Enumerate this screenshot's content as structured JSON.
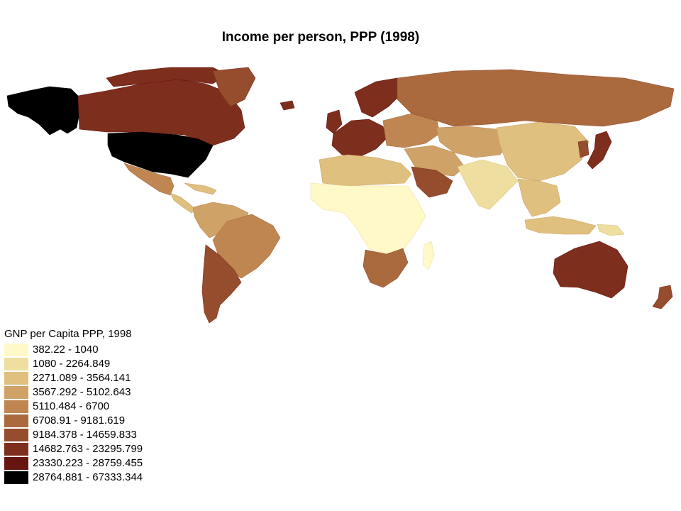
{
  "title": "Income per person, PPP (1998)",
  "legend": {
    "title": "GNP per Capita PPP, 1998",
    "classes": [
      {
        "label": "382.22 - 1040",
        "color": "#fff8c8"
      },
      {
        "label": "1080 - 2264.849",
        "color": "#eedfa0"
      },
      {
        "label": "2271.089 - 3564.141",
        "color": "#dfc07e"
      },
      {
        "label": "3567.292 - 5102.643",
        "color": "#cfa268"
      },
      {
        "label": "5110.484 - 6700",
        "color": "#bf8652"
      },
      {
        "label": "6708.91 - 9181.619",
        "color": "#ab6a3e"
      },
      {
        "label": "9184.378 - 14659.833",
        "color": "#954d2d"
      },
      {
        "label": "14682.763 - 23295.799",
        "color": "#7e2e1c"
      },
      {
        "label": "23330.223 - 28759.455",
        "color": "#661510"
      },
      {
        "label": "28764.881 - 67333.344",
        "color": "#000000"
      }
    ]
  },
  "regions": [
    {
      "name": "alaska",
      "class": 9
    },
    {
      "name": "canada",
      "class": 7
    },
    {
      "name": "canada-arctic",
      "class": 7
    },
    {
      "name": "greenland",
      "class": 6
    },
    {
      "name": "usa",
      "class": 9
    },
    {
      "name": "mexico",
      "class": 4
    },
    {
      "name": "central-america",
      "class": 2
    },
    {
      "name": "caribbean",
      "class": 2
    },
    {
      "name": "south-america-north",
      "class": 3
    },
    {
      "name": "brazil",
      "class": 4
    },
    {
      "name": "argentina-chile",
      "class": 6
    },
    {
      "name": "western-europe",
      "class": 7
    },
    {
      "name": "scandinavia",
      "class": 7
    },
    {
      "name": "eastern-europe",
      "class": 4
    },
    {
      "name": "russia",
      "class": 5
    },
    {
      "name": "central-asia",
      "class": 3
    },
    {
      "name": "north-africa",
      "class": 2
    },
    {
      "name": "sub-saharan-africa",
      "class": 0
    },
    {
      "name": "southern-africa",
      "class": 5
    },
    {
      "name": "madagascar",
      "class": 0
    },
    {
      "name": "arabian-peninsula",
      "class": 6
    },
    {
      "name": "middle-east",
      "class": 3
    },
    {
      "name": "south-asia",
      "class": 1
    },
    {
      "name": "china",
      "class": 2
    },
    {
      "name": "southeast-asia",
      "class": 2
    },
    {
      "name": "indonesia",
      "class": 2
    },
    {
      "name": "japan",
      "class": 7
    },
    {
      "name": "korea",
      "class": 6
    },
    {
      "name": "australia",
      "class": 7
    },
    {
      "name": "new-zealand",
      "class": 6
    },
    {
      "name": "british-isles",
      "class": 7
    },
    {
      "name": "iceland",
      "class": 7
    },
    {
      "name": "papua",
      "class": 1
    }
  ]
}
